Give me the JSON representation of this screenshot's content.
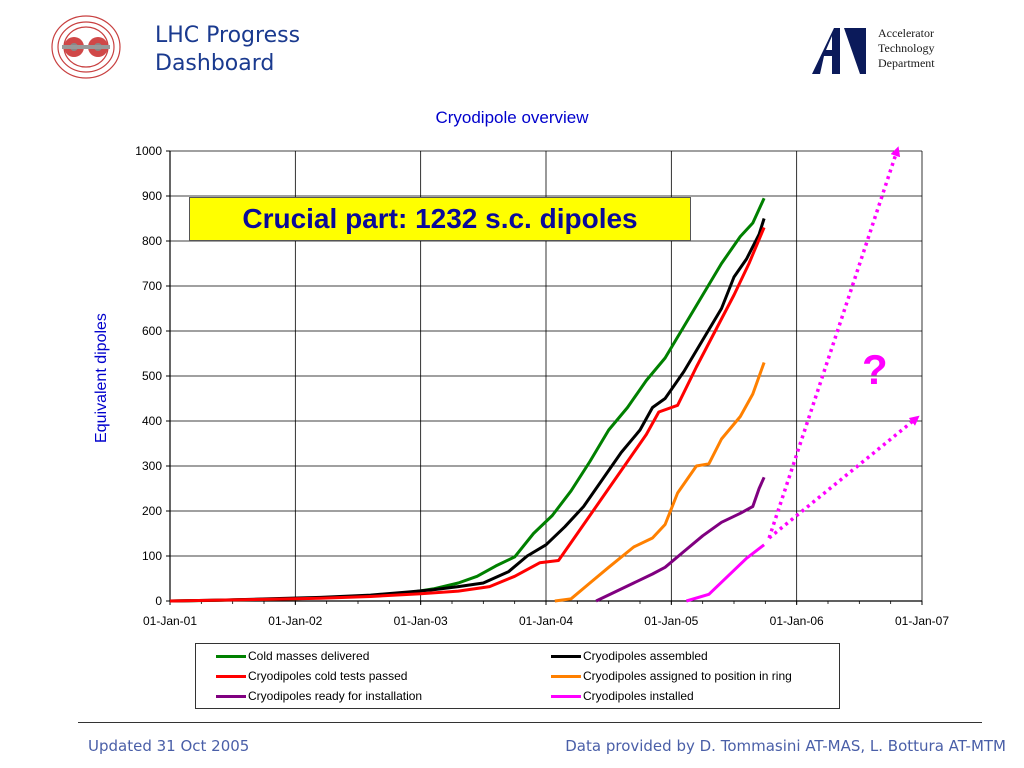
{
  "header": {
    "title_line1": "LHC Progress",
    "title_line2": "Dashboard",
    "dept_line1": "Accelerator",
    "dept_line2": "Technology",
    "dept_line3": "Department"
  },
  "annotations": {
    "banner": "Crucial part: 1232 s.c. dipoles",
    "question": "?"
  },
  "footer": {
    "left": "Updated 31 Oct 2005",
    "right": "Data provided by  D. Tommasini  AT-MAS, L. Bottura AT-MTM"
  },
  "chart_data": {
    "type": "line",
    "title": "Cryodipole overview",
    "ylabel": "Equivalent dipoles",
    "xlabel": "",
    "ylim": [
      0,
      1000
    ],
    "yticks": [
      0,
      100,
      200,
      300,
      400,
      500,
      600,
      700,
      800,
      900,
      1000
    ],
    "x_tick_labels": [
      "01-Jan-01",
      "01-Jan-02",
      "01-Jan-03",
      "01-Jan-04",
      "01-Jan-05",
      "01-Jan-06",
      "01-Jan-07"
    ],
    "x_range_years": [
      2001,
      2007
    ],
    "grid": true,
    "legend_position": "bottom",
    "series": [
      {
        "name": "Cold masses delivered",
        "color": "#008000",
        "points": [
          [
            2001.0,
            0
          ],
          [
            2001.3,
            1
          ],
          [
            2001.6,
            3
          ],
          [
            2002.0,
            5
          ],
          [
            2002.3,
            8
          ],
          [
            2002.6,
            12
          ],
          [
            2002.9,
            18
          ],
          [
            2003.1,
            27
          ],
          [
            2003.3,
            40
          ],
          [
            2003.45,
            55
          ],
          [
            2003.6,
            78
          ],
          [
            2003.75,
            98
          ],
          [
            2003.9,
            150
          ],
          [
            2004.05,
            190
          ],
          [
            2004.2,
            245
          ],
          [
            2004.35,
            310
          ],
          [
            2004.5,
            380
          ],
          [
            2004.65,
            430
          ],
          [
            2004.8,
            490
          ],
          [
            2004.95,
            540
          ],
          [
            2005.1,
            610
          ],
          [
            2005.25,
            680
          ],
          [
            2005.4,
            750
          ],
          [
            2005.55,
            810
          ],
          [
            2005.65,
            840
          ],
          [
            2005.74,
            895
          ]
        ]
      },
      {
        "name": "Cryodipoles assembled",
        "color": "#000000",
        "points": [
          [
            2001.0,
            0
          ],
          [
            2001.4,
            2
          ],
          [
            2001.8,
            5
          ],
          [
            2002.2,
            8
          ],
          [
            2002.6,
            13
          ],
          [
            2002.9,
            20
          ],
          [
            2003.1,
            25
          ],
          [
            2003.3,
            32
          ],
          [
            2003.5,
            40
          ],
          [
            2003.7,
            65
          ],
          [
            2003.85,
            100
          ],
          [
            2004.0,
            125
          ],
          [
            2004.15,
            165
          ],
          [
            2004.3,
            210
          ],
          [
            2004.45,
            270
          ],
          [
            2004.6,
            330
          ],
          [
            2004.75,
            380
          ],
          [
            2004.85,
            430
          ],
          [
            2004.95,
            450
          ],
          [
            2005.1,
            510
          ],
          [
            2005.25,
            580
          ],
          [
            2005.4,
            650
          ],
          [
            2005.5,
            720
          ],
          [
            2005.6,
            760
          ],
          [
            2005.7,
            815
          ],
          [
            2005.74,
            850
          ]
        ]
      },
      {
        "name": "Cryodipoles cold tests passed",
        "color": "#ff0000",
        "points": [
          [
            2001.0,
            0
          ],
          [
            2001.4,
            2
          ],
          [
            2001.8,
            4
          ],
          [
            2002.2,
            6
          ],
          [
            2002.6,
            10
          ],
          [
            2003.0,
            16
          ],
          [
            2003.3,
            22
          ],
          [
            2003.55,
            32
          ],
          [
            2003.75,
            55
          ],
          [
            2003.95,
            85
          ],
          [
            2004.1,
            90
          ],
          [
            2004.2,
            130
          ],
          [
            2004.35,
            190
          ],
          [
            2004.5,
            250
          ],
          [
            2004.65,
            310
          ],
          [
            2004.8,
            370
          ],
          [
            2004.9,
            420
          ],
          [
            2005.05,
            435
          ],
          [
            2005.2,
            520
          ],
          [
            2005.35,
            600
          ],
          [
            2005.5,
            680
          ],
          [
            2005.62,
            750
          ],
          [
            2005.74,
            830
          ]
        ]
      },
      {
        "name": "Cryodipoles assigned to position in ring",
        "color": "#ff8000",
        "points": [
          [
            2004.07,
            0
          ],
          [
            2004.2,
            5
          ],
          [
            2004.35,
            40
          ],
          [
            2004.5,
            75
          ],
          [
            2004.7,
            120
          ],
          [
            2004.85,
            140
          ],
          [
            2004.95,
            170
          ],
          [
            2005.05,
            240
          ],
          [
            2005.2,
            300
          ],
          [
            2005.3,
            305
          ],
          [
            2005.4,
            360
          ],
          [
            2005.55,
            410
          ],
          [
            2005.65,
            460
          ],
          [
            2005.74,
            530
          ]
        ]
      },
      {
        "name": "Cryodipoles ready for installation",
        "color": "#800080",
        "points": [
          [
            2004.4,
            0
          ],
          [
            2004.55,
            20
          ],
          [
            2004.7,
            40
          ],
          [
            2004.85,
            60
          ],
          [
            2004.95,
            75
          ],
          [
            2005.1,
            110
          ],
          [
            2005.25,
            145
          ],
          [
            2005.4,
            175
          ],
          [
            2005.55,
            195
          ],
          [
            2005.65,
            210
          ],
          [
            2005.7,
            250
          ],
          [
            2005.74,
            275
          ]
        ]
      },
      {
        "name": "Cryodipoles installed",
        "color": "#ff00ff",
        "points": [
          [
            2005.12,
            0
          ],
          [
            2005.3,
            15
          ],
          [
            2005.45,
            55
          ],
          [
            2005.6,
            95
          ],
          [
            2005.74,
            125
          ]
        ]
      }
    ],
    "projections": [
      {
        "color": "#ff00ff",
        "from": [
          2005.78,
          140
        ],
        "to": [
          2006.8,
          1000
        ]
      },
      {
        "color": "#ff00ff",
        "from": [
          2005.78,
          140
        ],
        "to": [
          2006.95,
          405
        ]
      }
    ]
  }
}
